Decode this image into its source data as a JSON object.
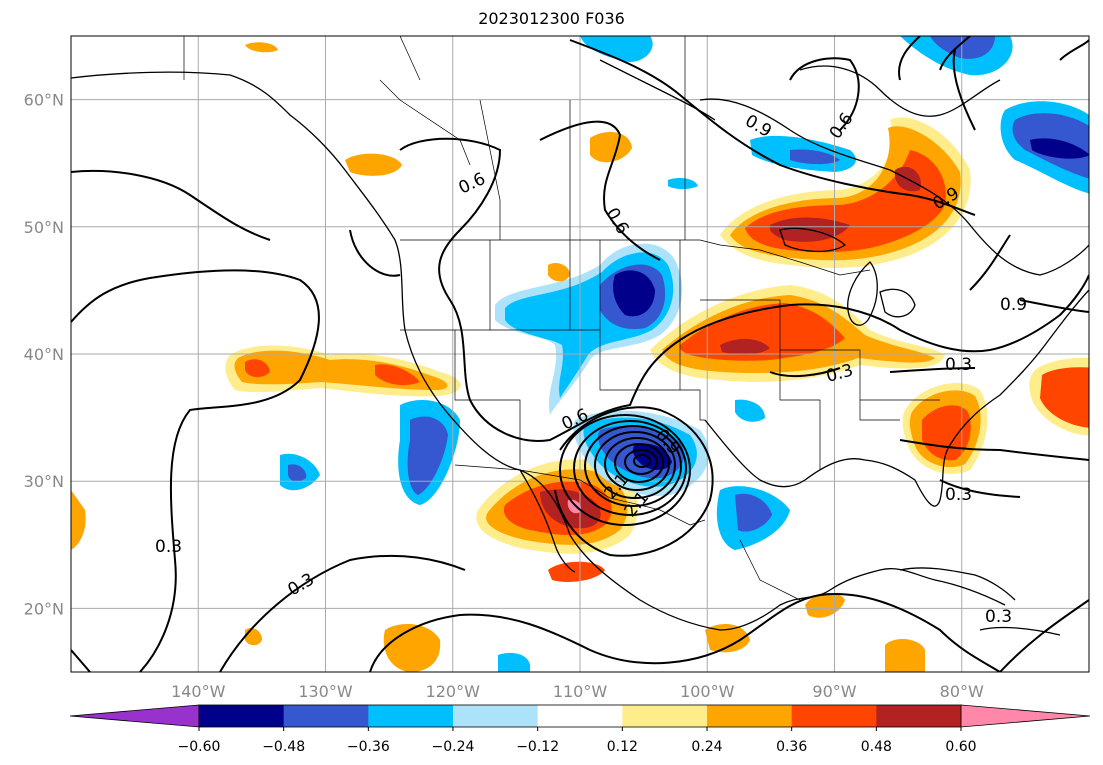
{
  "title": "2023012300 F036",
  "map": {
    "projection": "plate-carree",
    "extent": {
      "lon_min": -150,
      "lon_max": -70,
      "lat_min": 15,
      "lat_max": 65
    },
    "lat_ticks": [
      {
        "value": 20,
        "label": "20°N"
      },
      {
        "value": 30,
        "label": "30°N"
      },
      {
        "value": 40,
        "label": "40°N"
      },
      {
        "value": 50,
        "label": "50°N"
      },
      {
        "value": 60,
        "label": "60°N"
      }
    ],
    "lon_ticks": [
      {
        "value": -140,
        "label": "140°W"
      },
      {
        "value": -130,
        "label": "130°W"
      },
      {
        "value": -120,
        "label": "120°W"
      },
      {
        "value": -110,
        "label": "110°W"
      },
      {
        "value": -100,
        "label": "100°W"
      },
      {
        "value": -90,
        "label": "90°W"
      },
      {
        "value": -80,
        "label": "80°W"
      }
    ],
    "grid": true
  },
  "colorbar": {
    "extend": "both",
    "under_color": "#9932cc",
    "over_color": "#ff88aa",
    "colors": [
      "#00008b",
      "#3557cf",
      "#00bfff",
      "#ade3fa",
      "#ffffff",
      "#ffec8b",
      "#ffa500",
      "#ff4500",
      "#b22222"
    ],
    "ticks": [
      "−0.60",
      "−0.48",
      "−0.36",
      "−0.24",
      "−0.12",
      "0.12",
      "0.24",
      "0.36",
      "0.48",
      "0.60"
    ]
  },
  "contour_labels": [
    "0.3",
    "0.3",
    "0.6",
    "0.6",
    "0.9",
    "0.6",
    "0.9",
    "0.3",
    "0.3",
    "0.3",
    "0.6",
    "0.9",
    "2.1",
    "2.1",
    "0.3",
    "0.9"
  ]
}
